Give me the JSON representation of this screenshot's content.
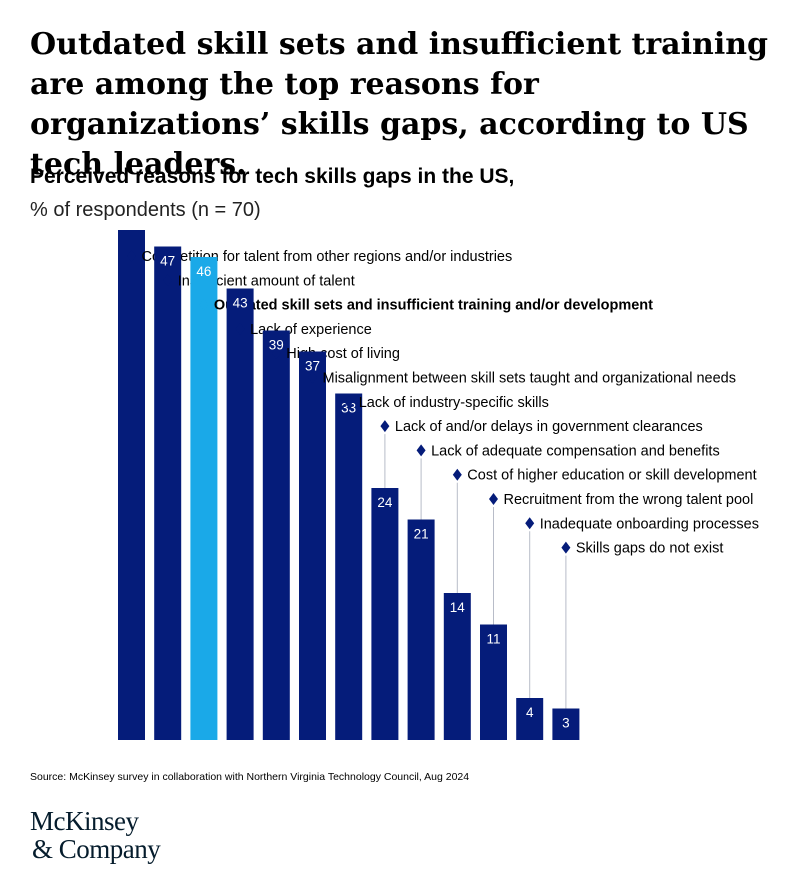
{
  "header": {
    "title": "Outdated skill sets and insufficient training are among the top reasons for organizations’ skills gaps, according to US tech leaders.",
    "subtitle": "Perceived reasons for tech skills gaps in the US,",
    "subtitle2": "% of respondents (n = 70)"
  },
  "footer": {
    "source": "Source: McKinsey survey in collaboration with Northern Virginia Technology Council, Aug 2024",
    "logo_line1": "McKinsey",
    "logo_line2": "& Company"
  },
  "colors": {
    "bar": "#051c7a",
    "highlight": "#1aa9e8",
    "leader": "#b8bcc8",
    "label_text": "#000000"
  },
  "chart_data": {
    "type": "bar",
    "categories": [
      "Competition for talent from other regions and/or industries",
      "Insufficient amount of talent",
      "Outdated skill sets and insufficient training and/or development",
      "Lack of experience",
      "High cost of living",
      "Misalignment between skill sets taught and organizational needs",
      "Lack of industry-specific skills",
      "Lack of and/or delays in government clearances",
      "Lack of adequate compensation and benefits",
      "Cost of higher education or skill development",
      "Recruitment from the wrong talent pool",
      "Inadequate onboarding processes",
      "Skills gaps do not exist"
    ],
    "values": [
      51,
      47,
      46,
      43,
      39,
      37,
      33,
      24,
      21,
      14,
      11,
      4,
      3
    ],
    "highlight_index": 2,
    "value_labels": true,
    "ylim": [
      0,
      51
    ],
    "grid": false,
    "legend": "none"
  }
}
